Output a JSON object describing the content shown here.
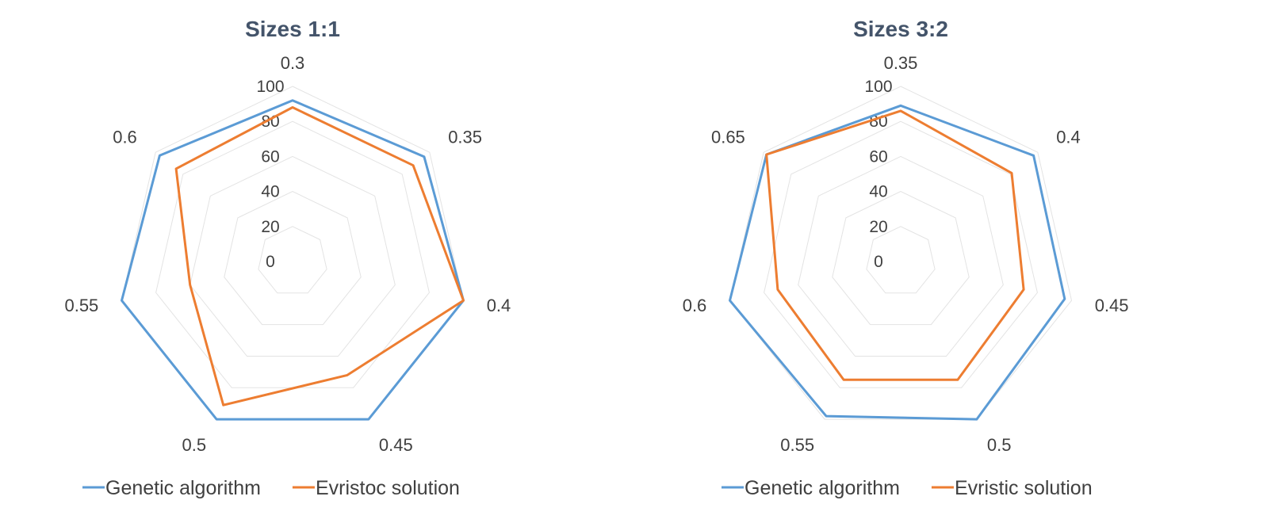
{
  "chart_data": [
    {
      "type": "radar",
      "title": "Sizes 1:1",
      "categories": [
        "0.3",
        "0.35",
        "0.4",
        "0.45",
        "0.5",
        "0.55",
        "0.6"
      ],
      "rlim": [
        0,
        100
      ],
      "rticks": [
        "0",
        "20",
        "40",
        "60",
        "80",
        "100"
      ],
      "grid": true,
      "legend_position": "bottom",
      "series": [
        {
          "name": "Genetic algorithm",
          "color": "#5b9bd5",
          "values": [
            92,
            96,
            100,
            100,
            100,
            100,
            97
          ]
        },
        {
          "name": "Evristoc solution",
          "color": "#ed7d31",
          "values": [
            88,
            88,
            100,
            72,
            91,
            60,
            85
          ]
        }
      ]
    },
    {
      "type": "radar",
      "title": "Sizes 3:2",
      "categories": [
        "0.35",
        "0.4",
        "0.45",
        "0.5",
        "0.55",
        "0.6",
        "0.65"
      ],
      "rlim": [
        0,
        100
      ],
      "rticks": [
        "0",
        "20",
        "40",
        "60",
        "80",
        "100"
      ],
      "grid": true,
      "legend_position": "bottom",
      "series": [
        {
          "name": "Genetic algorithm",
          "color": "#5b9bd5",
          "values": [
            89,
            97,
            96,
            100,
            98,
            100,
            98
          ]
        },
        {
          "name": "Evristic solution",
          "color": "#ed7d31",
          "values": [
            86,
            81,
            72,
            75,
            75,
            72,
            98
          ]
        }
      ]
    }
  ]
}
